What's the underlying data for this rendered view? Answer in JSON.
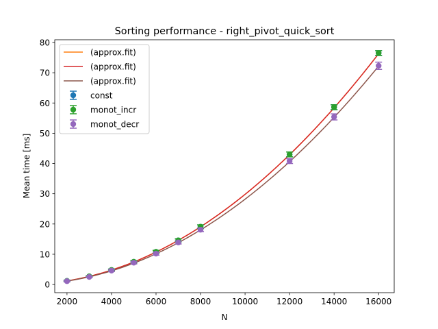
{
  "chart_data": {
    "type": "line",
    "title": "Sorting performance - right_pivot_quick_sort",
    "xlabel": "N",
    "ylabel": "Mean time [ms]",
    "xlim": [
      1450,
      16700
    ],
    "ylim": [
      -2.7,
      80.9
    ],
    "xticks": [
      2000,
      4000,
      6000,
      8000,
      10000,
      12000,
      14000,
      16000
    ],
    "yticks": [
      0,
      10,
      20,
      30,
      40,
      50,
      60,
      70,
      80
    ],
    "grid": false,
    "legend_position": "upper-left",
    "fit_lines": [
      {
        "label": " (approx.fit)",
        "color": "#ff7f0e",
        "a": 0.000298,
        "p": 2
      },
      {
        "label": " (approx.fit)",
        "color": "#d62728",
        "a": 0.000298,
        "p": 2
      },
      {
        "label": " (approx.fit)",
        "color": "#8c564b",
        "a": 0.000282,
        "p": 2
      }
    ],
    "series": [
      {
        "name": "const",
        "color": "#1f77b4",
        "x": [
          2000,
          3000,
          4000,
          5000,
          6000,
          7000,
          8000,
          12000,
          14000,
          16000
        ],
        "y": [
          1.2,
          2.7,
          4.8,
          7.5,
          10.8,
          14.6,
          19.1,
          43.0,
          58.6,
          76.5
        ],
        "err": [
          0.2,
          0.2,
          0.3,
          0.4,
          0.5,
          0.5,
          0.6,
          0.8,
          0.8,
          0.8
        ]
      },
      {
        "name": "monot_incr",
        "color": "#2ca02c",
        "x": [
          2000,
          3000,
          4000,
          5000,
          6000,
          7000,
          8000,
          12000,
          14000,
          16000
        ],
        "y": [
          1.2,
          2.7,
          4.8,
          7.5,
          10.8,
          14.6,
          19.1,
          43.0,
          58.6,
          76.5
        ],
        "err": [
          0.2,
          0.2,
          0.3,
          0.4,
          0.5,
          0.5,
          0.6,
          0.8,
          0.8,
          0.8
        ]
      },
      {
        "name": "monot_decr",
        "color": "#9467bd",
        "x": [
          2000,
          3000,
          4000,
          5000,
          6000,
          7000,
          8000,
          12000,
          14000,
          16000
        ],
        "y": [
          1.1,
          2.5,
          4.6,
          7.2,
          10.2,
          13.9,
          18.1,
          40.8,
          55.4,
          72.3
        ],
        "err": [
          0.2,
          0.2,
          0.3,
          0.4,
          0.5,
          0.5,
          0.6,
          0.8,
          1.0,
          1.2
        ]
      }
    ]
  }
}
